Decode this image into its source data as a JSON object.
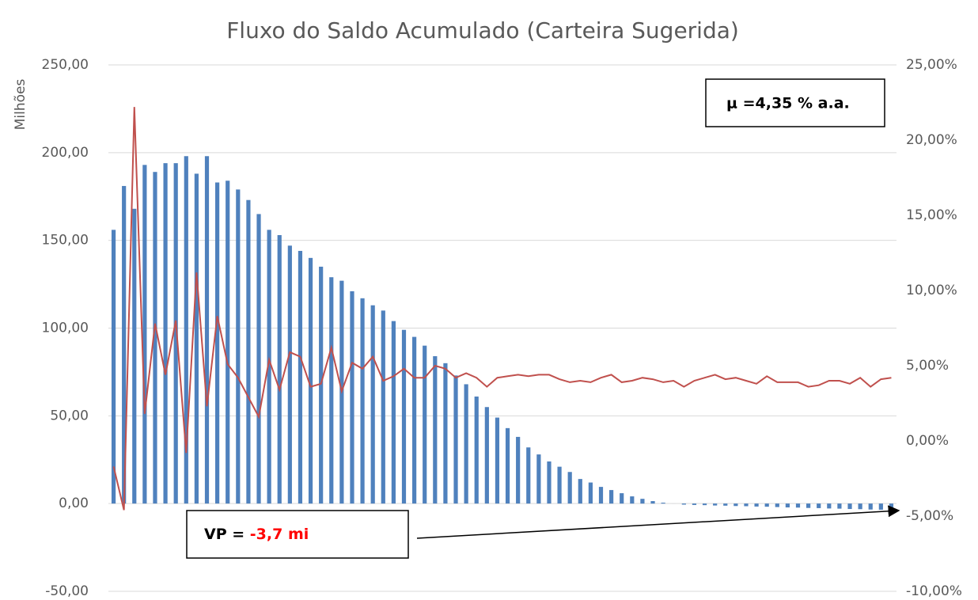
{
  "chart_data": {
    "type": "bar",
    "title": "Fluxo do Saldo Acumulado (Carteira Sugerida)",
    "y_label": "Milhões",
    "categories": [
      null,
      null,
      null,
      null,
      null,
      null,
      null,
      null,
      null,
      null,
      null,
      null,
      null,
      null,
      null,
      null,
      null,
      null,
      null,
      null,
      null,
      null,
      null,
      null,
      null,
      null,
      null,
      null,
      null,
      null,
      null,
      null,
      null,
      null,
      null,
      null,
      null,
      null,
      null,
      null,
      null,
      null,
      null,
      null,
      null,
      null,
      null,
      null,
      null,
      null,
      null,
      null,
      null,
      null,
      null,
      null,
      null,
      null,
      null,
      null,
      null,
      null,
      null,
      null,
      null,
      null,
      null,
      null,
      null,
      null,
      null,
      null,
      null,
      null,
      null,
      null
    ],
    "series": [
      {
        "type": "bar",
        "color": "#4f81bd",
        "values": [
          156,
          181,
          168,
          193,
          189,
          194,
          194,
          198,
          188,
          198,
          183,
          184,
          179,
          173,
          165,
          156,
          153,
          147,
          144,
          140,
          135,
          129,
          127,
          121,
          117,
          113,
          110,
          104,
          99,
          95,
          90,
          84,
          80,
          73,
          68,
          61,
          55,
          49,
          43,
          38,
          32,
          28,
          24,
          21,
          18,
          14,
          12,
          9.5,
          7.7,
          5.9,
          4.1,
          2.7,
          1.4,
          0.5,
          0,
          -0.6,
          -0.8,
          -0.9,
          -1.1,
          -1.2,
          -1.4,
          -1.5,
          -1.7,
          -1.8,
          -2,
          -2.2,
          -2.3,
          -2.5,
          -2.6,
          -2.8,
          -2.9,
          -3.1,
          -3.2,
          -3.4,
          -3.5,
          -3.7
        ]
      },
      {
        "type": "line",
        "axis": "y2",
        "color": "#c0504d",
        "values": [
          -1.7,
          -4.6,
          22.2,
          1.8,
          7.8,
          4.4,
          8.0,
          -0.8,
          11.2,
          2.3,
          8.3,
          5.1,
          4.2,
          2.9,
          1.6,
          5.4,
          3.4,
          5.9,
          5.6,
          3.6,
          3.8,
          6.2,
          3.3,
          5.2,
          4.8,
          5.6,
          4.0,
          4.3,
          4.8,
          4.2,
          4.2,
          5.0,
          4.8,
          4.2,
          4.5,
          4.2,
          3.6,
          4.2,
          4.3,
          4.4,
          4.3,
          4.4,
          4.4,
          4.1,
          3.9,
          4.0,
          3.9,
          4.2,
          4.4,
          3.9,
          4.0,
          4.2,
          4.1,
          3.9,
          4.0,
          3.6,
          4.0,
          4.2,
          4.4,
          4.1,
          4.2,
          4.0,
          3.8,
          4.3,
          3.9,
          3.9,
          3.9,
          3.6,
          3.7,
          4.0,
          4.0,
          3.8,
          4.2,
          3.6,
          4.1,
          4.2
        ]
      }
    ],
    "ylim": [
      -50,
      250
    ],
    "yticks": [
      {
        "value": -50,
        "label": "-50,00"
      },
      {
        "value": 0,
        "label": "0,00"
      },
      {
        "value": 50,
        "label": "50,00"
      },
      {
        "value": 100,
        "label": "100,00"
      },
      {
        "value": 150,
        "label": "150,00"
      },
      {
        "value": 200,
        "label": "200,00"
      },
      {
        "value": 250,
        "label": "250,00"
      }
    ],
    "y2lim": [
      -10,
      25
    ],
    "y2ticks": [
      {
        "value": -10,
        "label": "-10,00%"
      },
      {
        "value": -5,
        "label": "-5,00%"
      },
      {
        "value": 0,
        "label": "0,00%"
      },
      {
        "value": 5,
        "label": "5,00%"
      },
      {
        "value": 10,
        "label": "10,00%"
      },
      {
        "value": 15,
        "label": "15,00%"
      },
      {
        "value": 20,
        "label": "20,00%"
      },
      {
        "value": 25,
        "label": "25,00%"
      }
    ],
    "grid": true,
    "annotations": {
      "mu": "μ =4,35 % a.a.",
      "vp_label": "VP = ",
      "vp_value": "-3,7 mi"
    }
  }
}
